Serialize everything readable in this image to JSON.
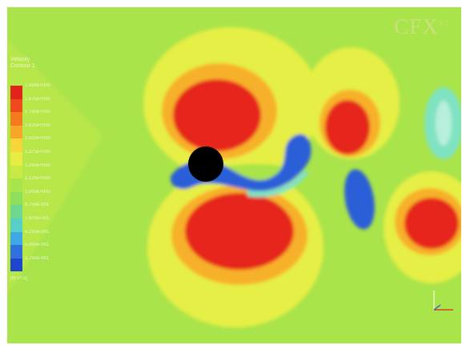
{
  "brand": {
    "text": "CFX",
    "superscript": "5.7"
  },
  "legend": {
    "title": "Velocity",
    "subtitle": "Contour 1",
    "units": "[m s^-1]",
    "levels": [
      "1.999e+000",
      "1.875e+000",
      "1.750e+000",
      "1.625e+000",
      "1.500e+000",
      "1.375e+000",
      "1.250e+000",
      "1.125e+000",
      "1.000e+000",
      "8.750e-001",
      "7.500e-001",
      "6.250e-001",
      "5.000e-001",
      "3.750e-001"
    ],
    "colors": [
      "#e2231a",
      "#ef4a1b",
      "#f57a1e",
      "#f8a628",
      "#f5d53a",
      "#e8ec42",
      "#c9ea45",
      "#a8e54c",
      "#8ee05c",
      "#6fd890",
      "#56cfc8",
      "#3fa8e6",
      "#2f70dc",
      "#1f45cc"
    ]
  },
  "field_colors": {
    "background": "#a9e44a",
    "light_yellow": "#e6ef45",
    "yellow": "#f2e23b",
    "orange_light": "#f7b02b",
    "orange": "#f47a1e",
    "red": "#e6251a",
    "cyan": "#7fe3c2",
    "light_blue": "#44a9ef",
    "blue": "#2b5fd8",
    "cylinder": "#000000"
  },
  "icons": {
    "axis": "axis-triad-icon",
    "cylinder": "cylinder-shape"
  }
}
